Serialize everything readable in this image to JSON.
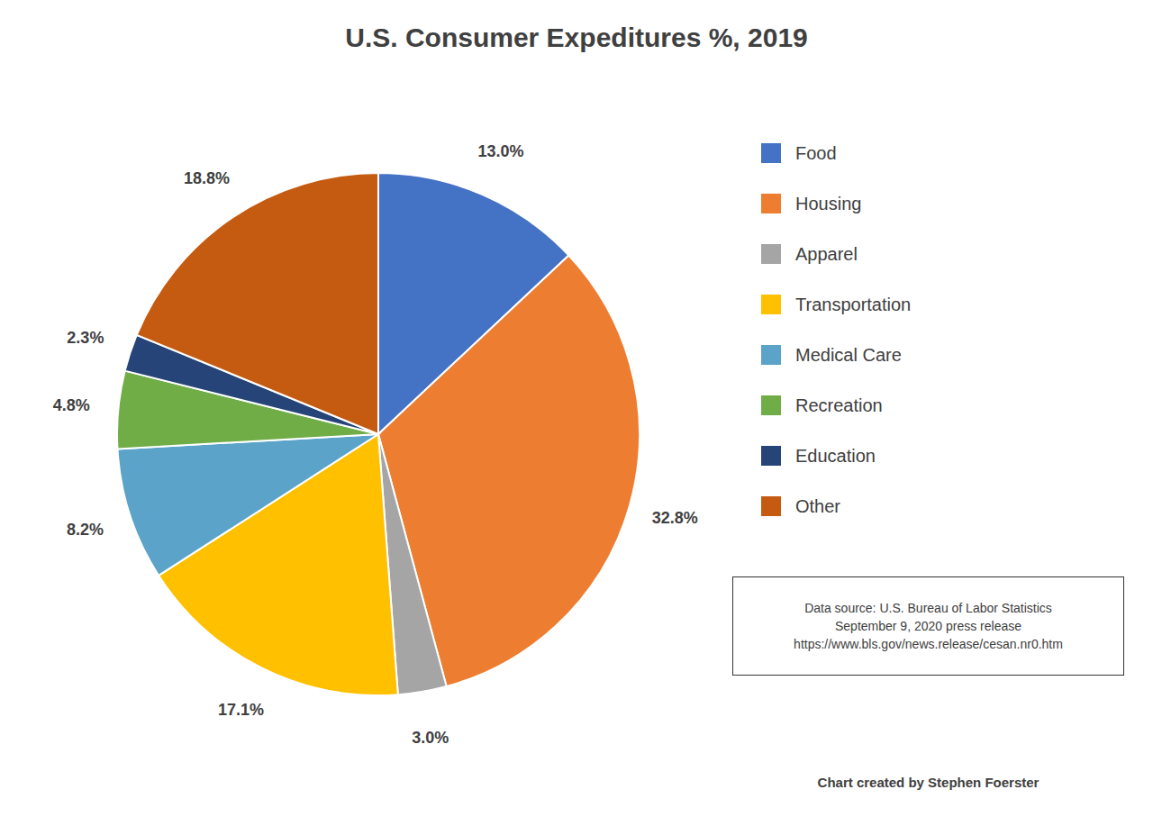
{
  "chart_data": {
    "type": "pie",
    "title": "U.S. Consumer Expeditures %, 2019",
    "categories": [
      "Food",
      "Housing",
      "Apparel",
      "Transportation",
      "Medical Care",
      "Recreation",
      "Education",
      "Other"
    ],
    "values": [
      13.0,
      32.8,
      3.0,
      17.1,
      8.2,
      4.8,
      2.3,
      18.8
    ],
    "value_labels": [
      "13.0%",
      "32.8%",
      "3.0%",
      "17.1%",
      "8.2%",
      "4.8%",
      "2.3%",
      "18.8%"
    ],
    "colors": [
      "#4472C4",
      "#ED7D31",
      "#A5A5A5",
      "#FFC000",
      "#5BA3C9",
      "#70AD47",
      "#264478",
      "#C55A11"
    ],
    "data_labels": true,
    "legend": "right",
    "annotations": [
      "Data source: U.S. Bureau of Labor Statistics\nSeptember 9, 2020 press release\nhttps://www.bls.gov/news.release/cesan.nr0.htm",
      "Chart created by Stephen Foerster"
    ]
  }
}
